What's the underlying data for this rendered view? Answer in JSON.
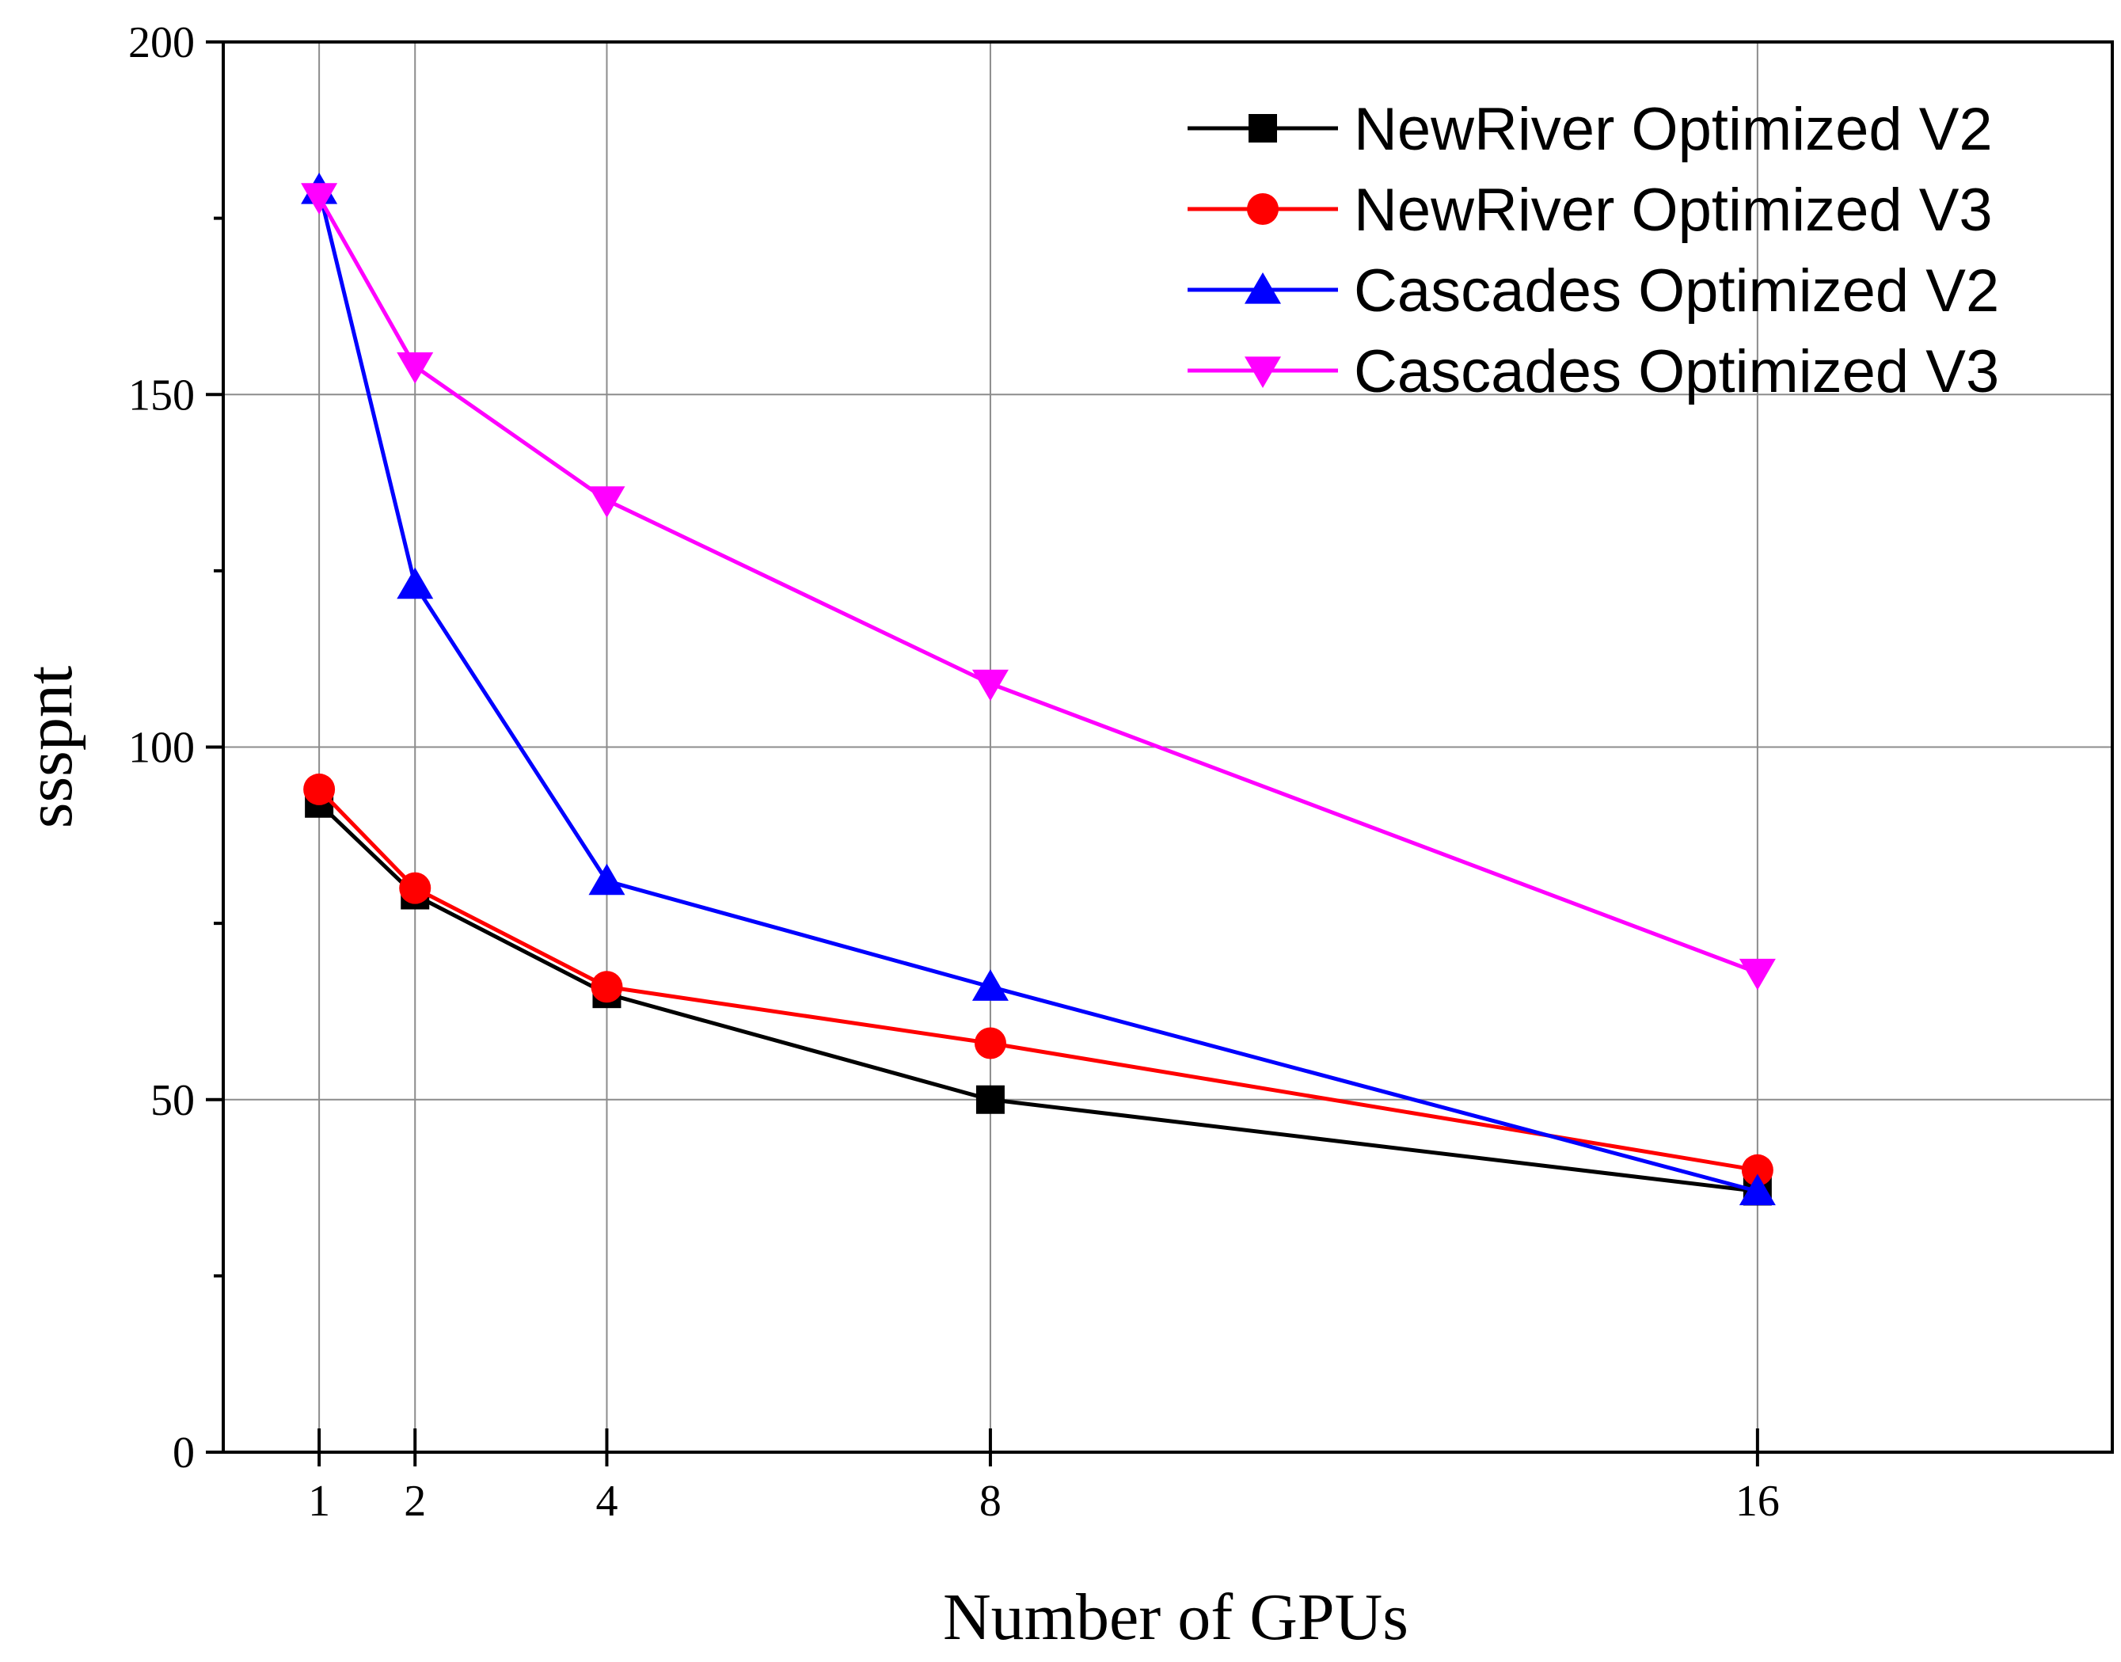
{
  "chart_data": {
    "type": "line",
    "title": "",
    "xlabel": "Number of GPUs",
    "ylabel": "ssspnt",
    "x": [
      1,
      2,
      4,
      8,
      16
    ],
    "x_tick_labels": [
      "1",
      "2",
      "4",
      "8",
      "16"
    ],
    "xlim": [
      0,
      19.7
    ],
    "ylim": [
      0,
      200
    ],
    "y_ticks": [
      0,
      50,
      100,
      150,
      200
    ],
    "y_tick_labels": [
      "0",
      "50",
      "100",
      "150",
      "200"
    ],
    "grid": true,
    "legend_position": "top-right",
    "series": [
      {
        "name": "NewRiver Optimized V2",
        "color": "#000000",
        "marker": "square",
        "values": [
          92,
          79,
          65,
          50,
          37
        ]
      },
      {
        "name": "NewRiver Optimized V3",
        "color": "#ff0000",
        "marker": "circle",
        "values": [
          94,
          80,
          66,
          58,
          40
        ]
      },
      {
        "name": "Cascades Optimized V2",
        "color": "#0000ff",
        "marker": "triangle-up",
        "values": [
          179,
          123,
          81,
          66,
          37
        ]
      },
      {
        "name": "Cascades Optimized V3",
        "color": "#ff00ff",
        "marker": "triangle-down",
        "values": [
          178,
          154,
          135,
          109,
          68
        ]
      }
    ]
  }
}
